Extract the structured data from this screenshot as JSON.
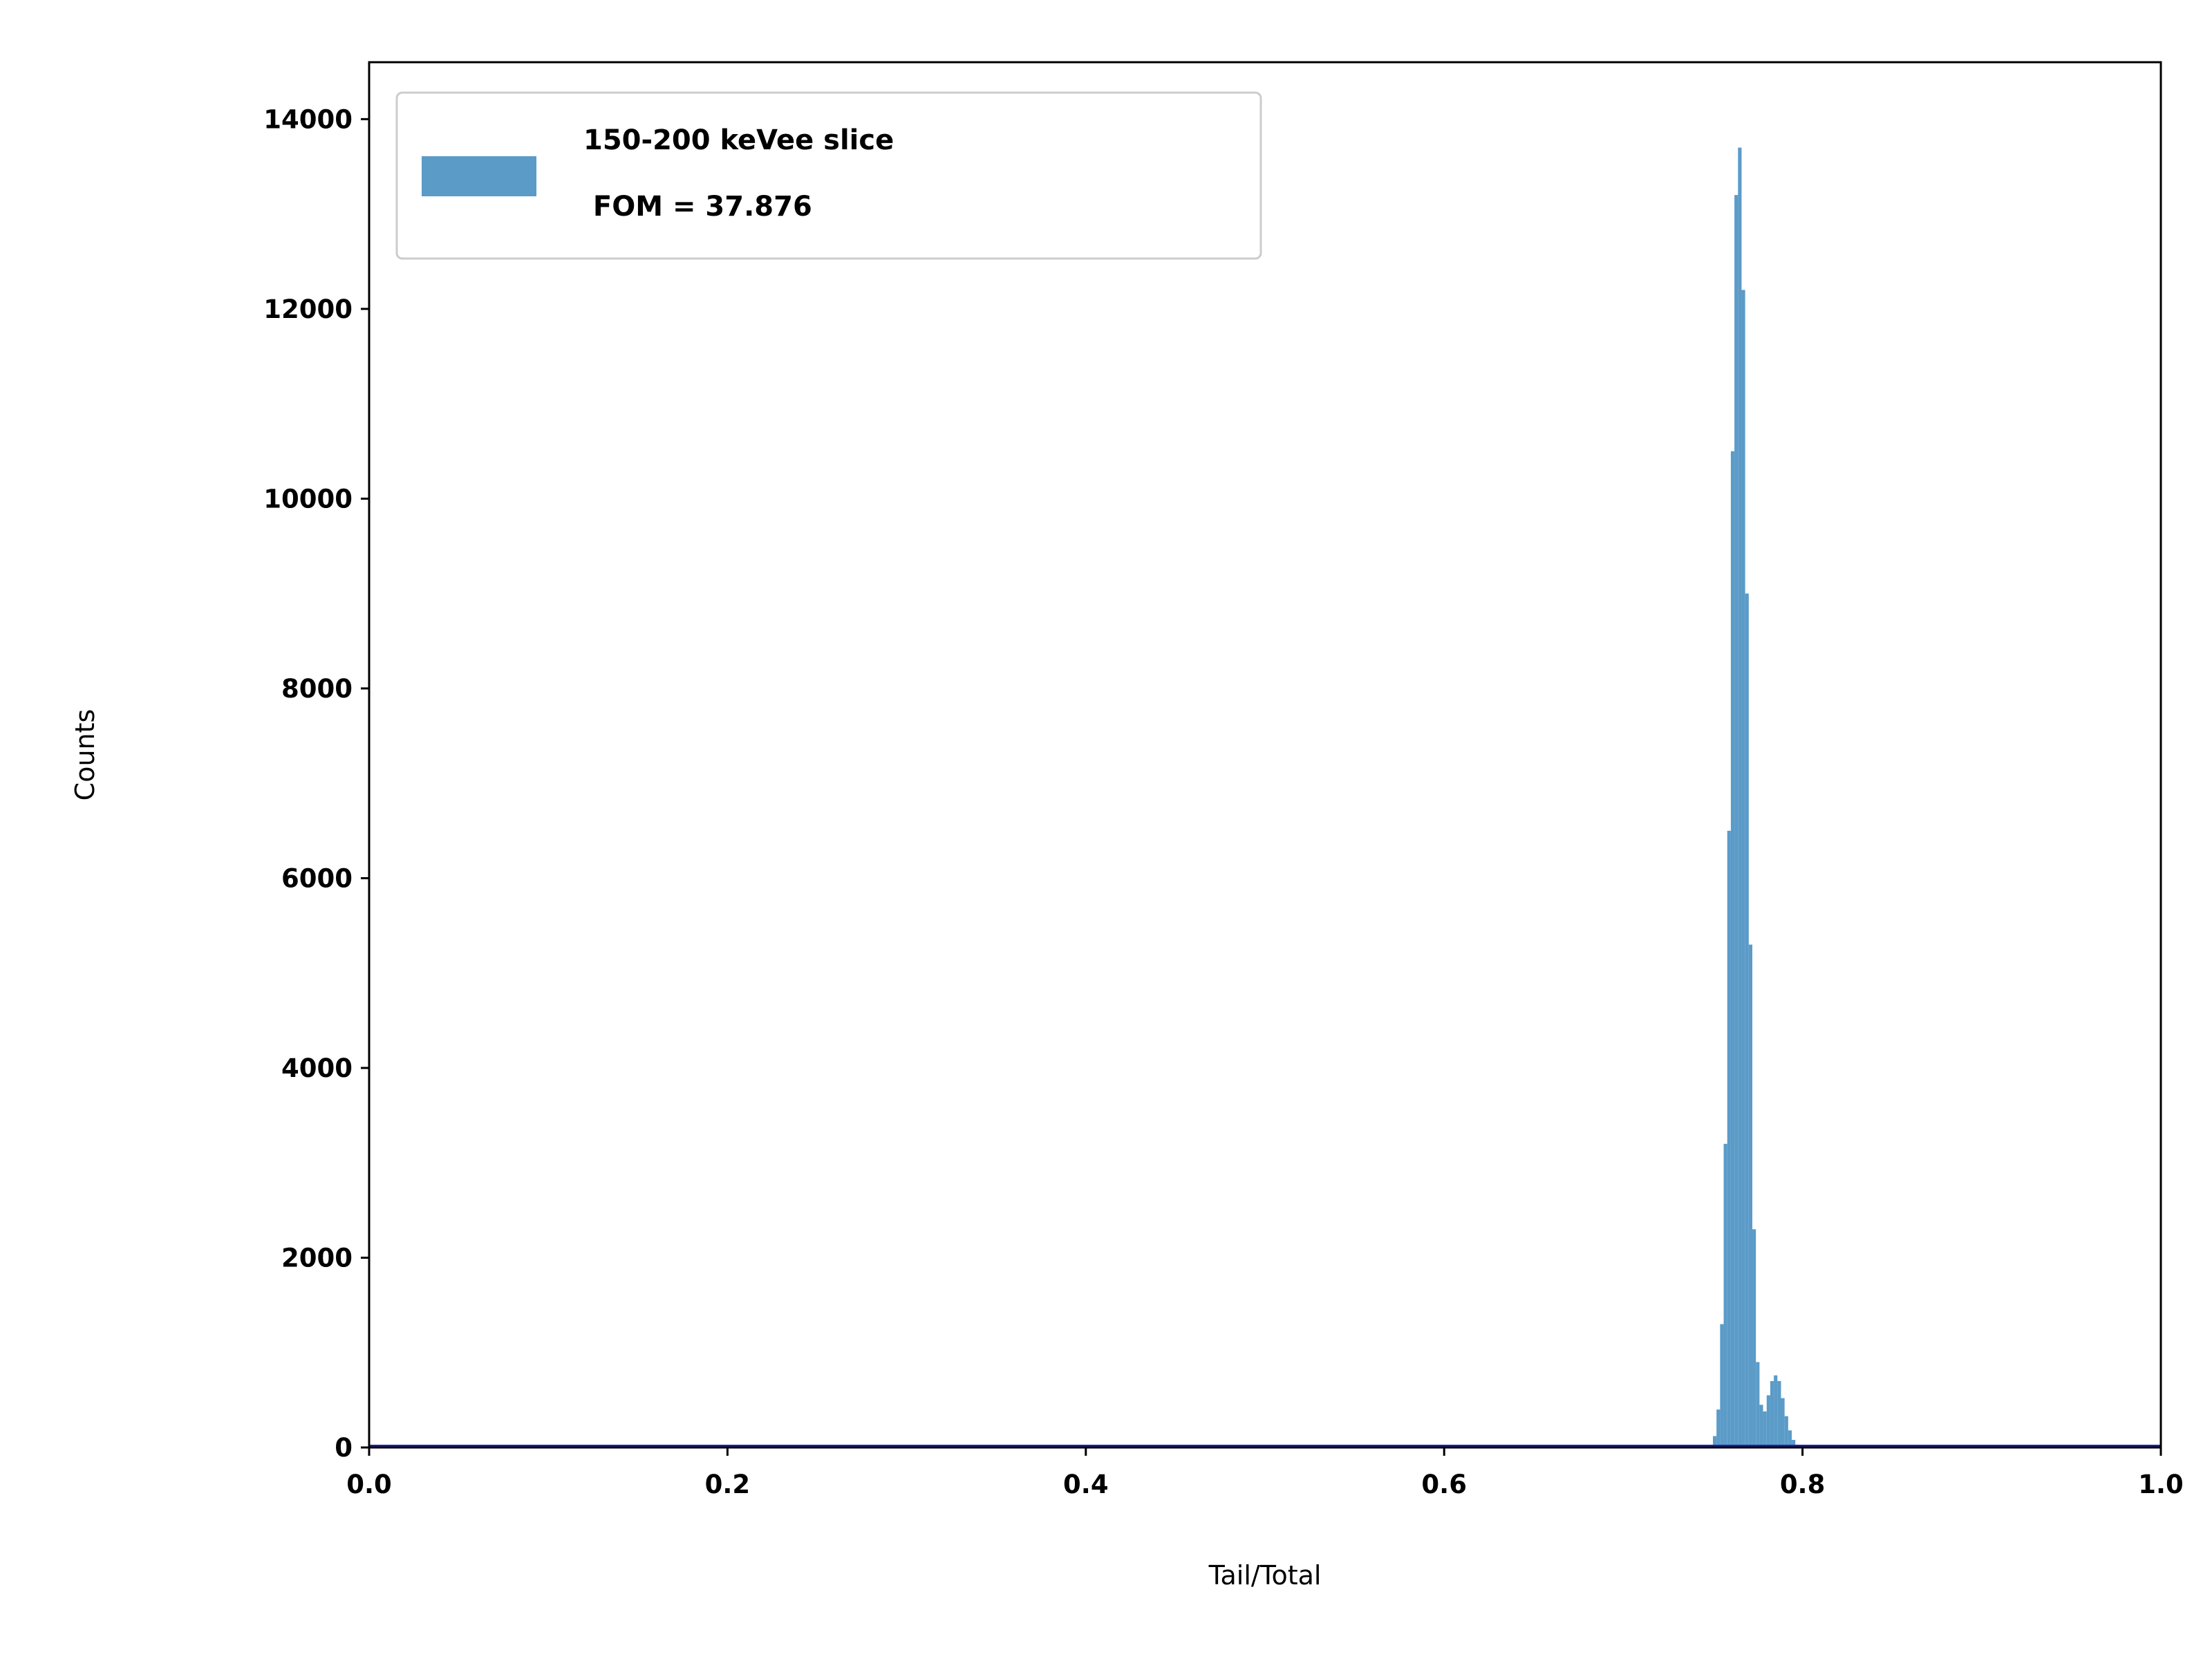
{
  "chart_data": {
    "type": "bar",
    "title": "",
    "xlabel": "Tail/Total",
    "ylabel": "Counts",
    "xlim": [
      0.0,
      1.0
    ],
    "ylim": [
      0,
      14600
    ],
    "x_ticks": [
      "0.0",
      "0.2",
      "0.4",
      "0.6",
      "0.8",
      "1.0"
    ],
    "y_ticks": [
      "0",
      "2000",
      "4000",
      "6000",
      "8000",
      "10000",
      "12000",
      "14000"
    ],
    "grid": false,
    "legend_position": "upper-left",
    "legend": {
      "line1": "150-200 keVee slice",
      "line2": " FOM = 37.876"
    },
    "bar_color": "#5b9bc8",
    "baseline_color": "#1f1faf",
    "series": [
      {
        "name": "150-200 keVee slice\n FOM = 37.876",
        "x": [
          0.75,
          0.752,
          0.754,
          0.756,
          0.758,
          0.76,
          0.762,
          0.764,
          0.766,
          0.768,
          0.77,
          0.772,
          0.774,
          0.776,
          0.778,
          0.78,
          0.782,
          0.784,
          0.786,
          0.788,
          0.79,
          0.792,
          0.794,
          0.796,
          0.798
        ],
        "values": [
          120,
          400,
          1300,
          3200,
          6500,
          10500,
          13200,
          13700,
          12200,
          9000,
          5300,
          2300,
          900,
          450,
          380,
          550,
          700,
          760,
          700,
          520,
          330,
          180,
          80,
          30,
          10
        ]
      }
    ]
  }
}
